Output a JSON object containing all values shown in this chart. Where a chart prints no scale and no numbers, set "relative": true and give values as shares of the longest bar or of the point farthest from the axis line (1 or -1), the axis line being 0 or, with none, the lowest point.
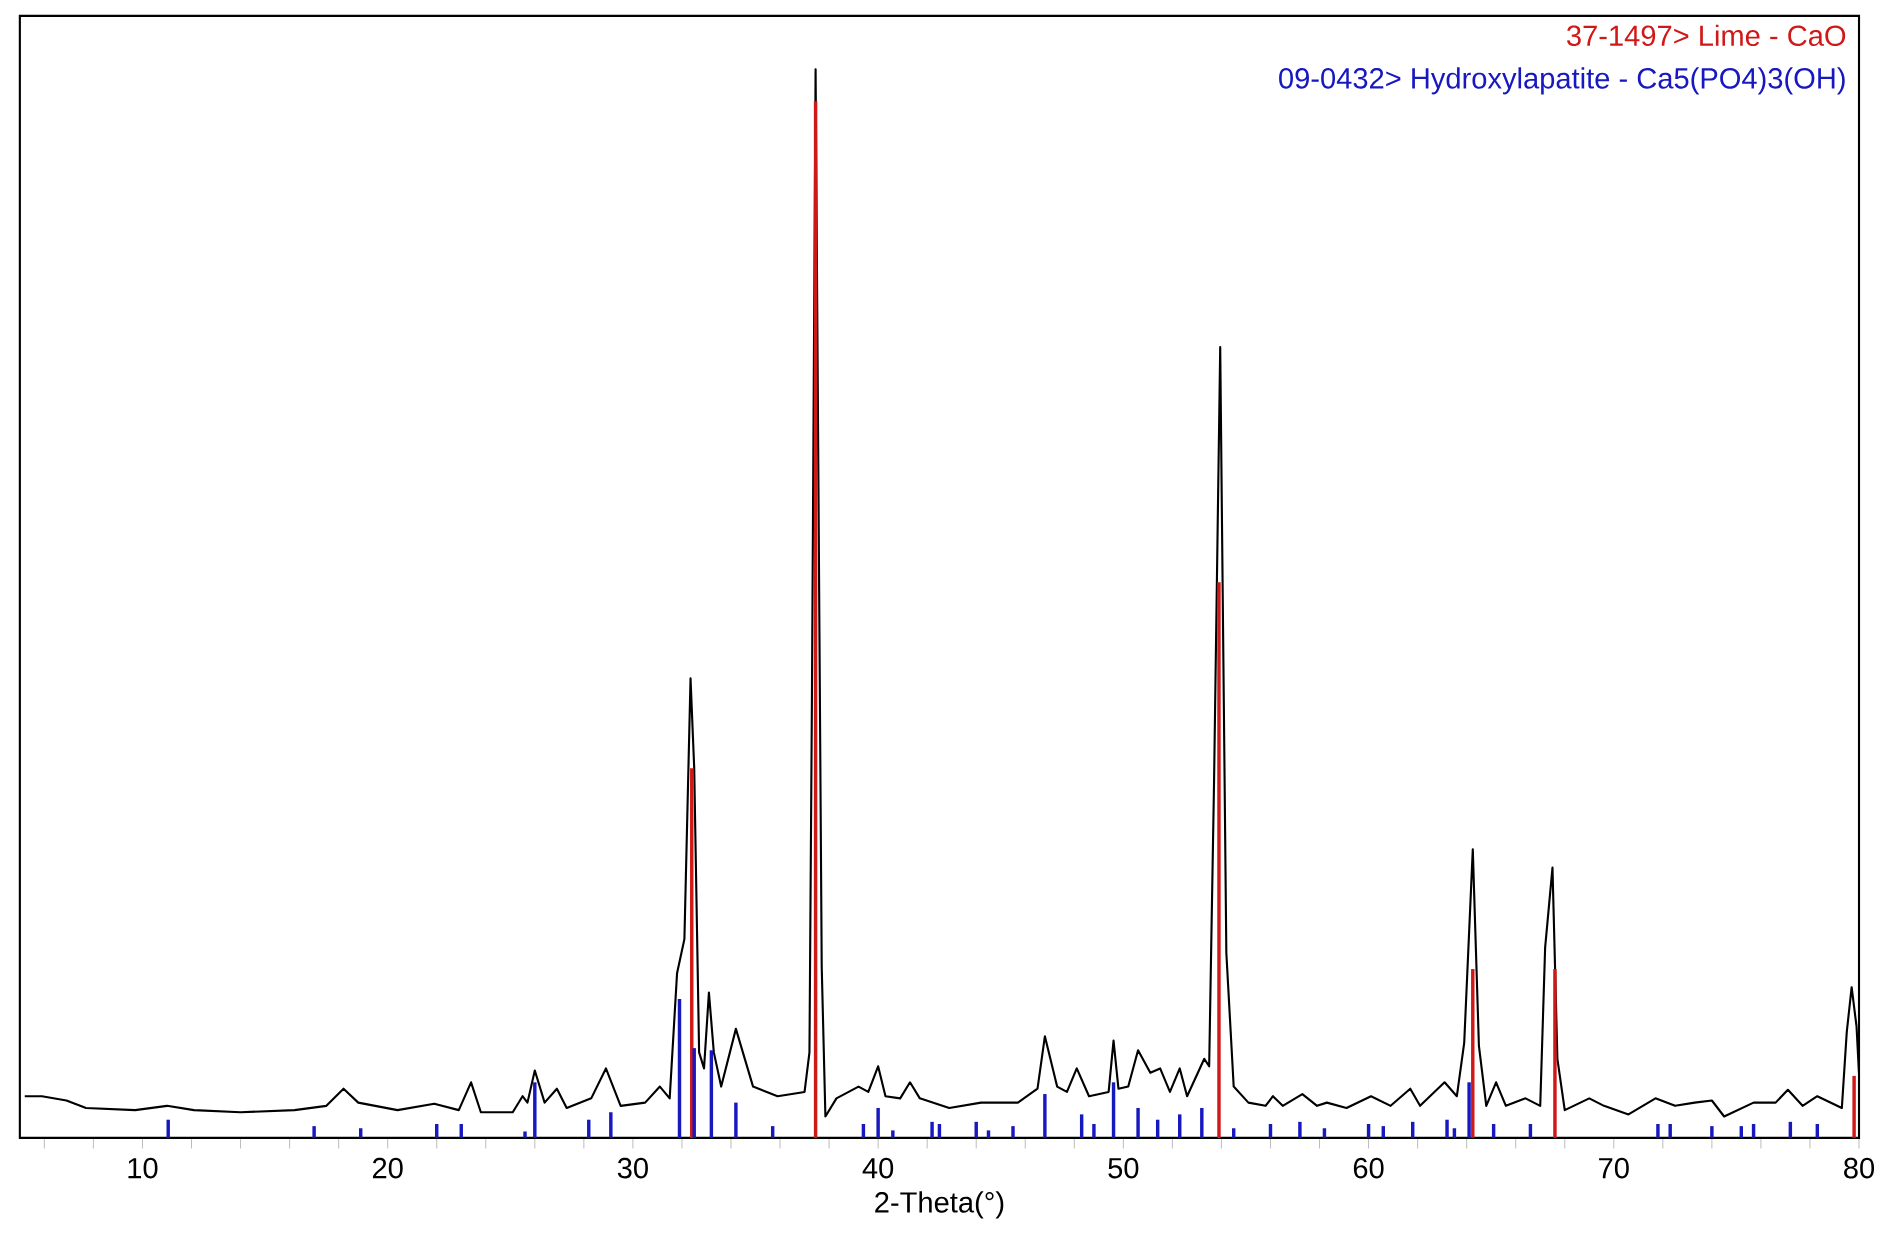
{
  "chart_data": {
    "type": "line",
    "relative": true,
    "xlabel": "2-Theta(°)",
    "xlim": [
      5,
      80
    ],
    "xticks": [
      {
        "value": 6,
        "label": null
      },
      {
        "value": 8,
        "label": null
      },
      10,
      {
        "value": 12,
        "label": null
      },
      {
        "value": 14,
        "label": null
      },
      {
        "value": 16,
        "label": null
      },
      {
        "value": 18,
        "label": null
      },
      20,
      {
        "value": 22,
        "label": null
      },
      {
        "value": 24,
        "label": null
      },
      {
        "value": 26,
        "label": null
      },
      {
        "value": 28,
        "label": null
      },
      30,
      {
        "value": 32,
        "label": null
      },
      {
        "value": 34,
        "label": null
      },
      {
        "value": 36,
        "label": null
      },
      {
        "value": 38,
        "label": null
      },
      40,
      {
        "value": 42,
        "label": null
      },
      {
        "value": 44,
        "label": null
      },
      {
        "value": 46,
        "label": null
      },
      {
        "value": 48,
        "label": null
      },
      50,
      {
        "value": 52,
        "label": null
      },
      {
        "value": 54,
        "label": null
      },
      {
        "value": 56,
        "label": null
      },
      {
        "value": 58,
        "label": null
      },
      60,
      {
        "value": 62,
        "label": null
      },
      {
        "value": 64,
        "label": null
      },
      {
        "value": 66,
        "label": null
      },
      {
        "value": 68,
        "label": null
      },
      70,
      {
        "value": 72,
        "label": null
      },
      {
        "value": 74,
        "label": null
      },
      {
        "value": 76,
        "label": null
      },
      {
        "value": 78,
        "label": null
      },
      80
    ],
    "legend": "top right",
    "grid": false,
    "marker": "none",
    "series": [
      {
        "color": "#000000",
        "x": [
          5.2,
          5.9,
          6.9,
          7.7,
          9.7,
          11.0,
          12.1,
          14.0,
          16.2,
          17.5,
          18.2,
          18.8,
          20.4,
          21.9,
          22.9,
          23.4,
          23.8,
          25.1,
          25.5,
          25.7,
          26.0,
          26.4,
          26.9,
          27.3,
          28.3,
          28.9,
          29.5,
          30.5,
          31.1,
          31.5,
          31.8,
          32.1,
          32.35,
          32.5,
          32.7,
          32.9,
          33.1,
          33.3,
          33.6,
          34.2,
          34.9,
          35.9,
          37.0,
          37.2,
          37.3,
          37.45,
          37.7,
          37.85,
          38.3,
          39.2,
          39.6,
          40.0,
          40.3,
          40.9,
          41.3,
          41.7,
          42.9,
          44.2,
          45.7,
          46.5,
          46.8,
          47.3,
          47.7,
          48.1,
          48.6,
          49.4,
          49.6,
          49.8,
          50.2,
          50.6,
          51.1,
          51.5,
          51.9,
          52.3,
          52.6,
          53.3,
          53.5,
          53.7,
          53.95,
          54.2,
          54.5,
          55.1,
          55.8,
          56.1,
          56.5,
          57.3,
          57.9,
          58.3,
          59.1,
          60.1,
          60.9,
          61.7,
          62.1,
          63.1,
          63.6,
          63.9,
          64.25,
          64.5,
          64.8,
          65.2,
          65.6,
          66.4,
          67.0,
          67.2,
          67.5,
          67.7,
          68.0,
          69.0,
          69.6,
          70.6,
          71.7,
          72.5,
          73.3,
          74.0,
          74.5,
          75.7,
          76.6,
          77.1,
          77.7,
          78.3,
          79.3,
          79.5,
          79.7,
          79.9,
          80.0
        ],
        "values": [
          0.039,
          0.039,
          0.035,
          0.028,
          0.026,
          0.03,
          0.026,
          0.024,
          0.026,
          0.03,
          0.046,
          0.033,
          0.026,
          0.032,
          0.026,
          0.052,
          0.024,
          0.024,
          0.039,
          0.033,
          0.063,
          0.033,
          0.046,
          0.028,
          0.037,
          0.065,
          0.03,
          0.033,
          0.048,
          0.037,
          0.154,
          0.186,
          0.43,
          0.346,
          0.08,
          0.065,
          0.136,
          0.08,
          0.048,
          0.102,
          0.048,
          0.039,
          0.043,
          0.08,
          0.41,
          1.0,
          0.16,
          0.02,
          0.037,
          0.048,
          0.043,
          0.067,
          0.039,
          0.037,
          0.052,
          0.037,
          0.028,
          0.033,
          0.033,
          0.046,
          0.095,
          0.048,
          0.043,
          0.065,
          0.039,
          0.043,
          0.091,
          0.046,
          0.048,
          0.082,
          0.061,
          0.065,
          0.043,
          0.065,
          0.039,
          0.074,
          0.067,
          0.335,
          0.74,
          0.173,
          0.048,
          0.033,
          0.03,
          0.039,
          0.03,
          0.041,
          0.03,
          0.033,
          0.028,
          0.039,
          0.03,
          0.046,
          0.03,
          0.052,
          0.039,
          0.089,
          0.27,
          0.086,
          0.03,
          0.052,
          0.03,
          0.037,
          0.03,
          0.178,
          0.253,
          0.074,
          0.026,
          0.037,
          0.03,
          0.022,
          0.037,
          0.03,
          0.033,
          0.035,
          0.02,
          0.033,
          0.033,
          0.045,
          0.03,
          0.039,
          0.028,
          0.099,
          0.141,
          0.104,
          0.06
        ]
      },
      {
        "type": "bar",
        "name": "37-1497> Lime - CaO",
        "color": "#d01818",
        "x": [
          32.4,
          37.45,
          53.9,
          64.25,
          67.6,
          79.8
        ],
        "values": [
          0.346,
          0.97,
          0.52,
          0.158,
          0.158,
          0.058
        ]
      },
      {
        "type": "bar",
        "name": "09-0432> Hydroxylapatite - Ca5(PO4)3(OH)",
        "color": "#1818c0",
        "x": [
          11.05,
          17.0,
          18.9,
          22.0,
          23.0,
          25.6,
          26.0,
          28.2,
          29.1,
          31.9,
          32.5,
          33.2,
          34.2,
          35.7,
          39.4,
          40.0,
          40.6,
          42.2,
          42.5,
          44.0,
          44.5,
          45.5,
          46.8,
          48.3,
          48.8,
          49.6,
          50.6,
          51.4,
          52.3,
          53.2,
          54.5,
          56.0,
          57.2,
          58.2,
          60.0,
          60.6,
          61.8,
          63.2,
          63.5,
          64.1,
          65.1,
          66.6,
          71.8,
          72.3,
          74.0,
          75.2,
          75.7,
          77.2,
          78.3
        ],
        "values": [
          0.017,
          0.011,
          0.009,
          0.013,
          0.013,
          0.006,
          0.052,
          0.017,
          0.024,
          0.13,
          0.084,
          0.082,
          0.033,
          0.011,
          0.013,
          0.028,
          0.007,
          0.015,
          0.013,
          0.015,
          0.007,
          0.011,
          0.041,
          0.022,
          0.013,
          0.052,
          0.028,
          0.017,
          0.022,
          0.028,
          0.009,
          0.013,
          0.015,
          0.009,
          0.013,
          0.011,
          0.015,
          0.017,
          0.009,
          0.052,
          0.013,
          0.013,
          0.013,
          0.013,
          0.011,
          0.011,
          0.013,
          0.015,
          0.013
        ]
      }
    ]
  }
}
